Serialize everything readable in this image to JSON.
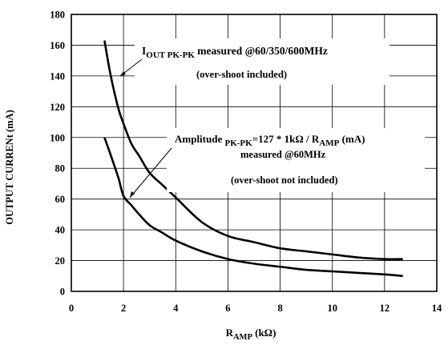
{
  "chart_data": {
    "type": "line",
    "xlabel_main": "R",
    "xlabel_sub": "AMP",
    "xlabel_unit": " (kΩ)",
    "ylabel": "OUTPUT CURRENt (mA)",
    "xlim": [
      0,
      14
    ],
    "ylim": [
      0,
      180
    ],
    "x_ticks": [
      0,
      2,
      4,
      6,
      8,
      10,
      12,
      14
    ],
    "y_ticks": [
      0,
      20,
      40,
      60,
      80,
      100,
      120,
      140,
      160,
      180
    ],
    "x_tick_labels": [
      "0",
      "2",
      "4",
      "6",
      "8",
      "10",
      "12",
      "14"
    ],
    "y_tick_labels": [
      "0",
      "20",
      "40",
      "60",
      "80",
      "100",
      "120",
      "140",
      "160",
      "180"
    ],
    "grid": true,
    "series": [
      {
        "x": [
          1.27,
          1.5,
          1.8,
          2.0,
          2.3,
          2.6,
          3.0,
          3.5,
          4.0,
          5.0,
          6.0,
          7.0,
          8.0,
          9.0,
          10.0,
          11.0,
          12.0,
          12.7
        ],
        "y": [
          163,
          141,
          119,
          109,
          96,
          88,
          77,
          69,
          61,
          45,
          36,
          32,
          28,
          26,
          24,
          22,
          21,
          21
        ]
      },
      {
        "x": [
          1.27,
          1.5,
          1.8,
          2.0,
          2.3,
          2.6,
          3.0,
          3.5,
          4.0,
          5.0,
          6.0,
          7.0,
          8.0,
          9.0,
          10.0,
          11.0,
          12.0,
          12.7
        ],
        "y": [
          100,
          89,
          74,
          62,
          56,
          50,
          43,
          38,
          33,
          26,
          21,
          18,
          16,
          14,
          13,
          12,
          11,
          10
        ]
      }
    ],
    "annotations": {
      "upper": {
        "line1_a": "I",
        "line1_sub": "OUT PK-PK",
        "line1_b": " measured @60/350/600MHz",
        "line2": "(over-shoot included)"
      },
      "lower": {
        "line1_a": "Amplitude ",
        "line1_sub1": "PK-PK",
        "line1_b": "=127 * 1kΩ / R",
        "line1_sub2": "AMP",
        "line1_c": " (mA)",
        "line2": "measured @60MHz",
        "line3": "(over-shoot not included)"
      }
    }
  }
}
